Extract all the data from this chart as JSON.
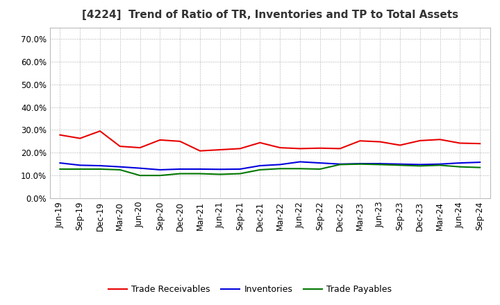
{
  "title": "[4224]  Trend of Ratio of TR, Inventories and TP to Total Assets",
  "x_labels": [
    "Jun-19",
    "Sep-19",
    "Dec-19",
    "Mar-20",
    "Jun-20",
    "Sep-20",
    "Dec-20",
    "Mar-21",
    "Jun-21",
    "Sep-21",
    "Dec-21",
    "Mar-22",
    "Jun-22",
    "Sep-22",
    "Dec-22",
    "Mar-23",
    "Jun-23",
    "Sep-23",
    "Dec-23",
    "Mar-24",
    "Jun-24",
    "Sep-24"
  ],
  "trade_receivables": [
    0.278,
    0.263,
    0.295,
    0.228,
    0.222,
    0.256,
    0.25,
    0.208,
    0.213,
    0.218,
    0.244,
    0.222,
    0.218,
    0.22,
    0.218,
    0.252,
    0.248,
    0.233,
    0.253,
    0.258,
    0.242,
    0.24
  ],
  "inventories": [
    0.155,
    0.145,
    0.143,
    0.138,
    0.132,
    0.125,
    0.128,
    0.128,
    0.127,
    0.128,
    0.143,
    0.148,
    0.16,
    0.155,
    0.15,
    0.152,
    0.152,
    0.15,
    0.148,
    0.15,
    0.155,
    0.158
  ],
  "trade_payables": [
    0.128,
    0.128,
    0.128,
    0.125,
    0.1,
    0.1,
    0.108,
    0.108,
    0.105,
    0.108,
    0.125,
    0.13,
    0.13,
    0.128,
    0.148,
    0.15,
    0.148,
    0.145,
    0.142,
    0.145,
    0.138,
    0.135
  ],
  "tr_color": "#e80000",
  "inv_color": "#0000dd",
  "tp_color": "#007700",
  "ylim": [
    0.0,
    0.75
  ],
  "yticks": [
    0.0,
    0.1,
    0.2,
    0.3,
    0.4,
    0.5,
    0.6,
    0.7
  ],
  "background_color": "#ffffff",
  "plot_bg_color": "#ffffff",
  "grid_color": "#aaaaaa",
  "legend_labels": [
    "Trade Receivables",
    "Inventories",
    "Trade Payables"
  ],
  "title_fontsize": 11,
  "tick_fontsize": 8.5,
  "linewidth": 1.5
}
